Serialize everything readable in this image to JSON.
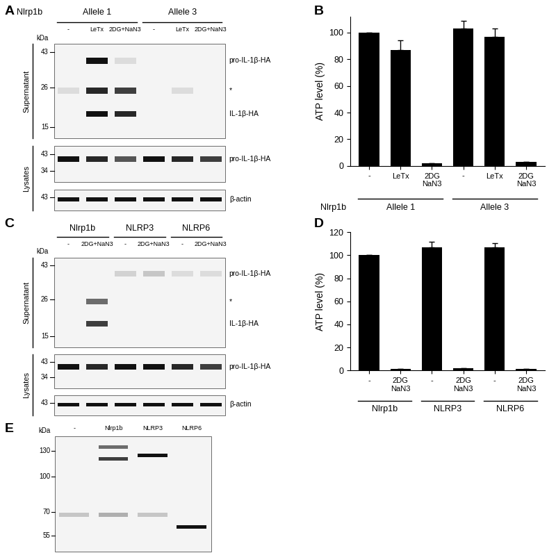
{
  "blots": [
    {
      "panel": "A",
      "header": "Nlrp1b",
      "groups": [
        {
          "label": "Allele 1",
          "lanes": [
            0,
            2
          ]
        },
        {
          "label": "Allele 3",
          "lanes": [
            3,
            5
          ]
        }
      ],
      "lanes": [
        "-",
        "LeTx",
        "2DG+NaN3",
        "-",
        "LeTx",
        "2DG+NaN3"
      ],
      "marker_unit": "kDa",
      "strips": [
        {
          "section": "Supernatant",
          "markers": [
            43,
            26,
            15
          ],
          "bands": [
            {
              "label": "pro-IL-1β-HA",
              "kDa": 38,
              "intensity": [
                0,
                1,
                0.1,
                0,
                0,
                0
              ]
            },
            {
              "label": "*",
              "kDa": 25,
              "intensity": [
                0.1,
                0.9,
                0.8,
                0,
                0.1,
                0
              ]
            },
            {
              "label": "IL-1β-HA",
              "kDa": 18,
              "intensity": [
                0,
                1,
                0.9,
                0,
                0,
                0
              ]
            }
          ]
        },
        {
          "section": "Lysates",
          "markers": [
            43,
            34
          ],
          "bands": [
            {
              "label": "pro-IL-1β-HA",
              "kDa": 40,
              "intensity": [
                1,
                0.9,
                0.7,
                1,
                0.9,
                0.8
              ]
            }
          ]
        },
        {
          "section": "Lysates",
          "markers": [
            43
          ],
          "bands": [
            {
              "label": "β-actin",
              "kDa": 42,
              "intensity": [
                1,
                1,
                1,
                1,
                1,
                1
              ]
            }
          ]
        }
      ]
    },
    {
      "panel": "C",
      "groups": [
        {
          "label": "Nlrp1b",
          "lanes": [
            0,
            1
          ]
        },
        {
          "label": "NLRP3",
          "lanes": [
            2,
            3
          ]
        },
        {
          "label": "NLRP6",
          "lanes": [
            4,
            5
          ]
        }
      ],
      "lanes": [
        "-",
        "2DG+NaN3",
        "-",
        "2DG+NaN3",
        "-",
        "2DG+NaN3"
      ],
      "marker_unit": "kDa",
      "strips": [
        {
          "section": "Supernatant",
          "markers": [
            43,
            26,
            15
          ],
          "bands": [
            {
              "label": "pro-IL-1β-HA",
              "kDa": 38,
              "intensity": [
                0,
                0,
                0.15,
                0.2,
                0.1,
                0.1
              ]
            },
            {
              "label": "*",
              "kDa": 25,
              "intensity": [
                0,
                0.6,
                0,
                0,
                0,
                0
              ]
            },
            {
              "label": "IL-1β-HA",
              "kDa": 18,
              "intensity": [
                0,
                0.8,
                0,
                0,
                0,
                0
              ]
            }
          ]
        },
        {
          "section": "Lysates",
          "markers": [
            43,
            34
          ],
          "bands": [
            {
              "label": "pro-IL-1β-HA",
              "kDa": 40,
              "intensity": [
                1,
                0.9,
                1,
                1,
                0.9,
                0.8
              ]
            }
          ]
        },
        {
          "section": "Lysates",
          "markers": [
            43
          ],
          "bands": [
            {
              "label": "β-actin",
              "kDa": 42,
              "intensity": [
                1,
                1,
                1,
                1,
                1,
                1
              ]
            }
          ]
        }
      ]
    },
    {
      "panel": "E",
      "lanes": [
        "-",
        "Nlrp1b",
        "NLRP3",
        "NLRP6"
      ],
      "marker_unit": "kDa",
      "strips": [
        {
          "markers": [
            130,
            100,
            70,
            55
          ],
          "bands": [
            {
              "kDa": 135,
              "intensity": [
                0,
                0.6,
                0,
                0
              ]
            },
            {
              "kDa": 120,
              "intensity": [
                0,
                0.8,
                0,
                0
              ]
            },
            {
              "kDa": 124,
              "intensity": [
                0,
                0,
                1,
                0
              ]
            },
            {
              "kDa": 68,
              "intensity": [
                0.2,
                0.3,
                0.2,
                0
              ]
            },
            {
              "kDa": 60,
              "intensity": [
                0,
                0,
                0,
                1
              ]
            }
          ]
        }
      ]
    }
  ],
  "chart_data": [
    {
      "panel": "B",
      "type": "bar",
      "y_label": "ATP level (%)",
      "categories": [
        "-",
        "LeTx",
        "2DG\nNaN3",
        "-",
        "LeTx",
        "2DG\nNaN3"
      ],
      "values": [
        100,
        87,
        2,
        103,
        97,
        3
      ],
      "errors": [
        0,
        7,
        0,
        6,
        6,
        0
      ],
      "group_label": "Nlrp1b",
      "groups": [
        {
          "label": "Allele 1",
          "categories": [
            0,
            2
          ]
        },
        {
          "label": "Allele 3",
          "categories": [
            3,
            5
          ]
        }
      ],
      "color": "#000000",
      "ylim": [
        0,
        112
      ],
      "yticks": [
        0,
        20,
        40,
        60,
        80,
        100
      ]
    },
    {
      "panel": "D",
      "type": "bar",
      "y_label": "ATP level (%)",
      "categories": [
        "-",
        "2DG\nNaN3",
        "-",
        "2DG\nNaN3",
        "-",
        "2DG\nNaN3"
      ],
      "values": [
        100,
        1.5,
        107,
        2,
        107,
        1.5
      ],
      "errors": [
        0,
        0,
        5,
        0,
        3.5,
        0
      ],
      "groups": [
        {
          "label": "Nlrp1b",
          "categories": [
            0,
            1
          ]
        },
        {
          "label": "NLRP3",
          "categories": [
            2,
            3
          ]
        },
        {
          "label": "NLRP6",
          "categories": [
            4,
            5
          ]
        }
      ],
      "color": "#000000",
      "ylim": [
        0,
        120
      ],
      "yticks": [
        0,
        20,
        40,
        60,
        80,
        100,
        120
      ]
    }
  ]
}
